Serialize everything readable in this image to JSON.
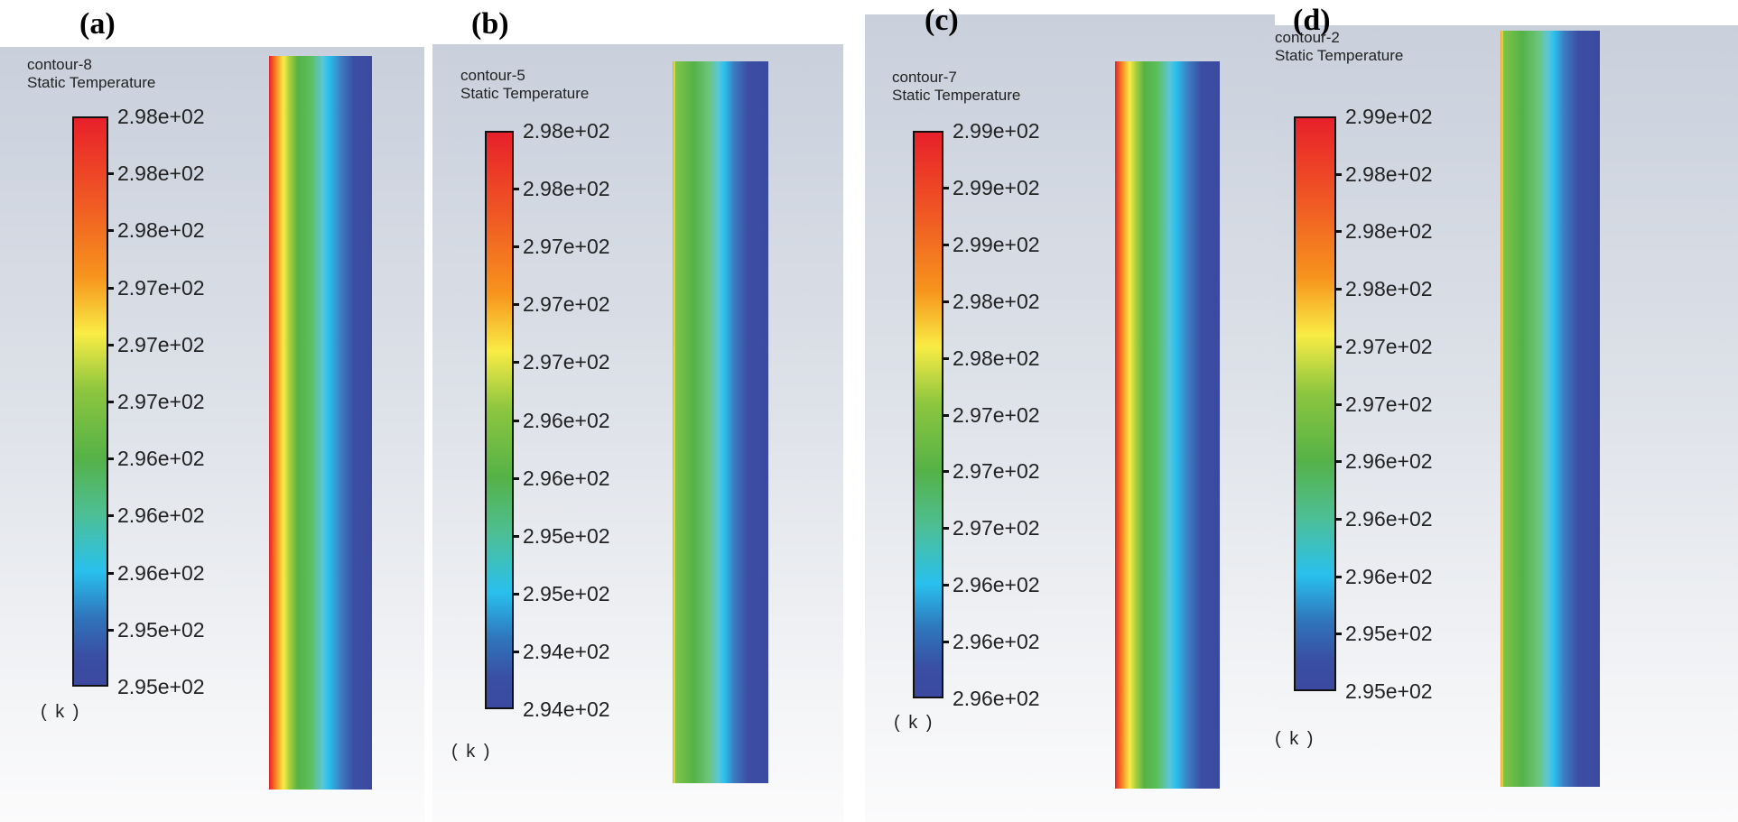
{
  "chart_data": [
    {
      "type": "heatmap",
      "panel": "(a)",
      "name": "contour-8",
      "title": "Static Temperature",
      "unit": "( k )",
      "tick_labels": [
        "2.98e+02",
        "2.98e+02",
        "2.98e+02",
        "2.97e+02",
        "2.97e+02",
        "2.97e+02",
        "2.96e+02",
        "2.96e+02",
        "2.96e+02",
        "2.95e+02",
        "2.95e+02"
      ],
      "range": [
        295,
        298
      ],
      "colormap": "rainbow",
      "profile": "full"
    },
    {
      "type": "heatmap",
      "panel": "(b)",
      "name": "contour-5",
      "title": "Static Temperature",
      "unit": "( k )",
      "tick_labels": [
        "2.98e+02",
        "2.98e+02",
        "2.97e+02",
        "2.97e+02",
        "2.97e+02",
        "2.96e+02",
        "2.96e+02",
        "2.95e+02",
        "2.95e+02",
        "2.94e+02",
        "2.94e+02"
      ],
      "range": [
        294,
        298
      ],
      "colormap": "rainbow",
      "profile": "thin"
    },
    {
      "type": "heatmap",
      "panel": "(c)",
      "name": "contour-7",
      "title": "Static Temperature",
      "unit": "( k )",
      "tick_labels": [
        "2.99e+02",
        "2.99e+02",
        "2.99e+02",
        "2.98e+02",
        "2.98e+02",
        "2.97e+02",
        "2.97e+02",
        "2.97e+02",
        "2.96e+02",
        "2.96e+02",
        "2.96e+02"
      ],
      "range": [
        296,
        299
      ],
      "colormap": "rainbow",
      "profile": "full"
    },
    {
      "type": "heatmap",
      "panel": "(d)",
      "name": "contour-2",
      "title": "Static Temperature",
      "unit": "( k )",
      "tick_labels": [
        "2.99e+02",
        "2.98e+02",
        "2.98e+02",
        "2.98e+02",
        "2.97e+02",
        "2.97e+02",
        "2.96e+02",
        "2.96e+02",
        "2.96e+02",
        "2.95e+02",
        "2.95e+02"
      ],
      "range": [
        295,
        299
      ],
      "colormap": "rainbow",
      "profile": "thin"
    }
  ]
}
